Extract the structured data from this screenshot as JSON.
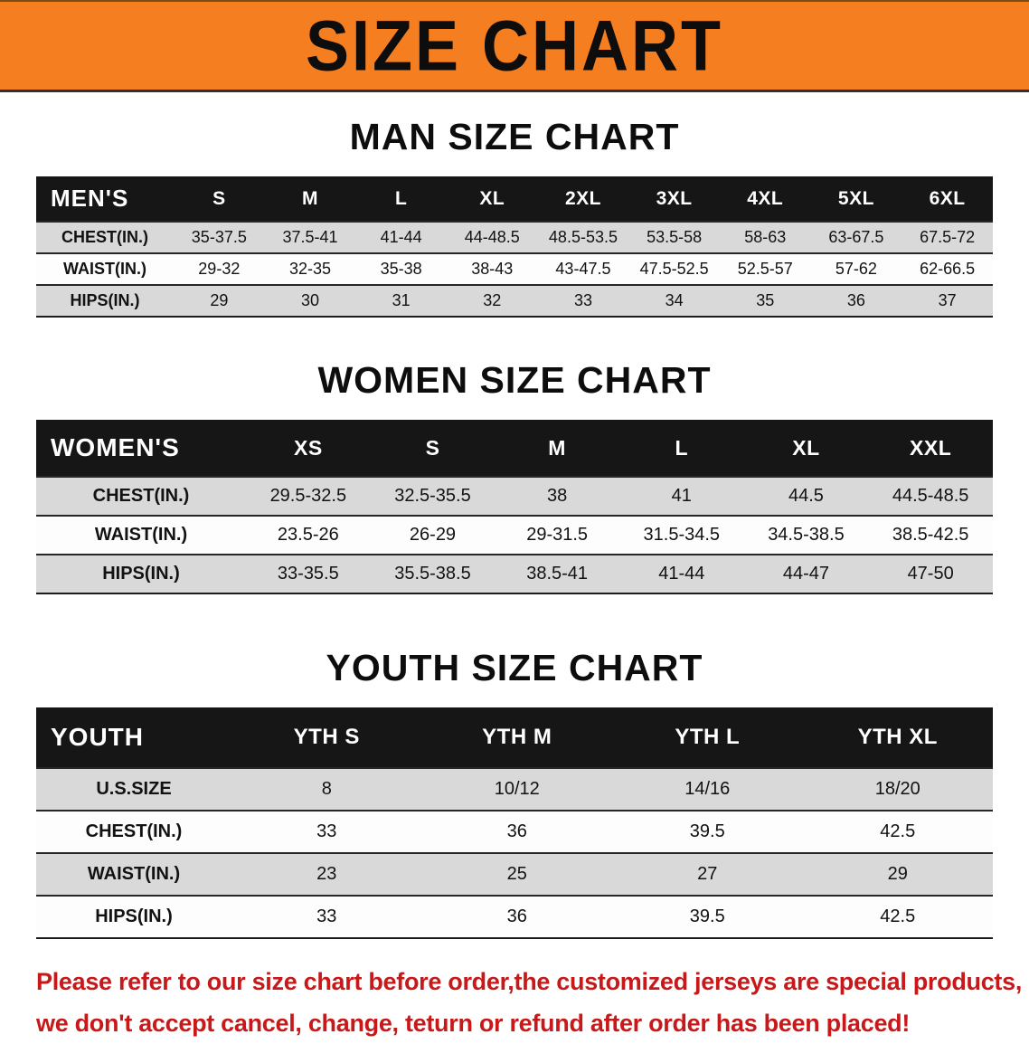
{
  "banner": {
    "title": "SIZE CHART"
  },
  "sections": [
    {
      "id": "men",
      "heading": "MAN SIZE CHART",
      "table": {
        "header_label": "MEN'S",
        "columns": [
          "S",
          "M",
          "L",
          "XL",
          "2XL",
          "3XL",
          "4XL",
          "5XL",
          "6XL"
        ],
        "rows": [
          {
            "label": "CHEST(IN.)",
            "values": [
              "35-37.5",
              "37.5-41",
              "41-44",
              "44-48.5",
              "48.5-53.5",
              "53.5-58",
              "58-63",
              "63-67.5",
              "67.5-72"
            ]
          },
          {
            "label": "WAIST(IN.)",
            "values": [
              "29-32",
              "32-35",
              "35-38",
              "38-43",
              "43-47.5",
              "47.5-52.5",
              "52.5-57",
              "57-62",
              "62-66.5"
            ]
          },
          {
            "label": "HIPS(IN.)",
            "values": [
              "29",
              "30",
              "31",
              "32",
              "33",
              "34",
              "35",
              "36",
              "37"
            ]
          }
        ]
      }
    },
    {
      "id": "women",
      "heading": "WOMEN SIZE CHART",
      "table": {
        "header_label": "WOMEN'S",
        "columns": [
          "XS",
          "S",
          "M",
          "L",
          "XL",
          "XXL"
        ],
        "rows": [
          {
            "label": "CHEST(IN.)",
            "values": [
              "29.5-32.5",
              "32.5-35.5",
              "38",
              "41",
              "44.5",
              "44.5-48.5"
            ]
          },
          {
            "label": "WAIST(IN.)",
            "values": [
              "23.5-26",
              "26-29",
              "29-31.5",
              "31.5-34.5",
              "34.5-38.5",
              "38.5-42.5"
            ]
          },
          {
            "label": "HIPS(IN.)",
            "values": [
              "33-35.5",
              "35.5-38.5",
              "38.5-41",
              "41-44",
              "44-47",
              "47-50"
            ]
          }
        ]
      }
    },
    {
      "id": "youth",
      "heading": "YOUTH SIZE CHART",
      "table": {
        "header_label": "YOUTH",
        "columns": [
          "YTH S",
          "YTH M",
          "YTH L",
          "YTH XL"
        ],
        "rows": [
          {
            "label": "U.S.SIZE",
            "values": [
              "8",
              "10/12",
              "14/16",
              "18/20"
            ]
          },
          {
            "label": "CHEST(IN.)",
            "values": [
              "33",
              "36",
              "39.5",
              "42.5"
            ]
          },
          {
            "label": "WAIST(IN.)",
            "values": [
              "23",
              "25",
              "27",
              "29"
            ]
          },
          {
            "label": "HIPS(IN.)",
            "values": [
              "33",
              "36",
              "39.5",
              "42.5"
            ]
          }
        ]
      }
    }
  ],
  "disclaimer": {
    "lines": [
      "Please refer to our size chart before order,the customized jerseys are special products,",
      "we don't accept cancel, change, teturn or refund after order has been placed!"
    ]
  },
  "colors": {
    "banner_bg": "#f57f20",
    "table_header_bg": "#161616",
    "table_header_text": "#ffffff",
    "row_alt_bg": "#d9d9d9",
    "row_bg": "#fdfdfd",
    "disclaimer_text": "#c8191a"
  }
}
